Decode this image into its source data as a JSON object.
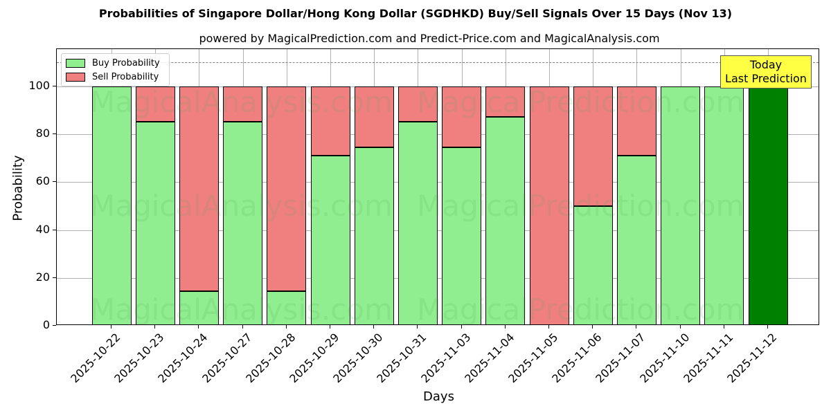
{
  "title": "Probabilities of Singapore Dollar/Hong Kong Dollar (SGDHKD) Buy/Sell Signals Over 15 Days (Nov 13)",
  "subtitle": "powered by MagicalPrediction.com and Predict-Price.com and MagicalAnalysis.com",
  "legend": {
    "buy_label": "Buy Probability",
    "sell_label": "Sell Probability"
  },
  "annotation": {
    "line1": "Today",
    "line2": "Last Prediction"
  },
  "watermarks": [
    "MagicalAnalysis.com",
    "MagicalPrediction.com"
  ],
  "colors": {
    "buy": "#90ee90",
    "sell": "#f08080",
    "today": "#008000",
    "annotation_bg": "#ffff44"
  },
  "chart_data": {
    "type": "bar",
    "stacked": true,
    "title": "Probabilities of Singapore Dollar/Hong Kong Dollar (SGDHKD) Buy/Sell Signals Over 15 Days (Nov 13)",
    "subtitle": "powered by MagicalPrediction.com and Predict-Price.com and MagicalAnalysis.com",
    "xlabel": "Days",
    "ylabel": "Probability",
    "ylim": [
      0,
      115
    ],
    "yticks": [
      0,
      20,
      40,
      60,
      80,
      100
    ],
    "reference_line": 110,
    "grid": true,
    "legend_position": "upper left",
    "categories": [
      "2025-10-22",
      "2025-10-23",
      "2025-10-24",
      "2025-10-27",
      "2025-10-28",
      "2025-10-29",
      "2025-10-30",
      "2025-10-31",
      "2025-11-03",
      "2025-11-04",
      "2025-11-05",
      "2025-11-06",
      "2025-11-07",
      "2025-11-10",
      "2025-11-11",
      "2025-11-12"
    ],
    "series": [
      {
        "name": "Buy Probability",
        "values": [
          100,
          85.4,
          14.5,
          85.4,
          14.5,
          71.0,
          74.5,
          85.3,
          74.5,
          87.2,
          0,
          50.0,
          71.0,
          100,
          100,
          100
        ]
      },
      {
        "name": "Sell Probability",
        "values": [
          0,
          14.6,
          85.5,
          14.6,
          85.5,
          29.0,
          25.5,
          14.7,
          25.5,
          12.8,
          100,
          50.0,
          29.0,
          0,
          0,
          0
        ]
      }
    ],
    "annotations": [
      {
        "text": "Today\nLast Prediction",
        "x": "2025-11-12"
      }
    ]
  }
}
